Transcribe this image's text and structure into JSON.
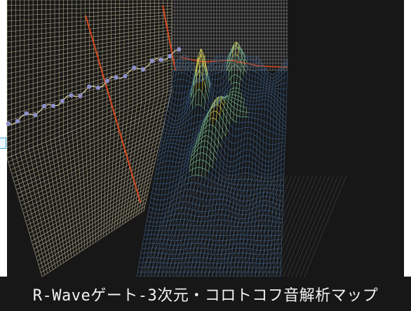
{
  "caption": {
    "text": "R-Waveゲート-3次元・コロトコフ音解析マップ"
  },
  "colors": {
    "background": "#171717",
    "wall_mesh": "#ddd3a8",
    "gate_line": "#d5481e",
    "trend_line": "#d8d0a0",
    "trend_dot": "#8c8ec8",
    "peak_mesh": "#e6e05a",
    "low_mesh": "#3a5f8a",
    "mid_mesh": "#7fc49a"
  },
  "icons": {
    "edge_tab": "tab-marker-icon"
  }
}
